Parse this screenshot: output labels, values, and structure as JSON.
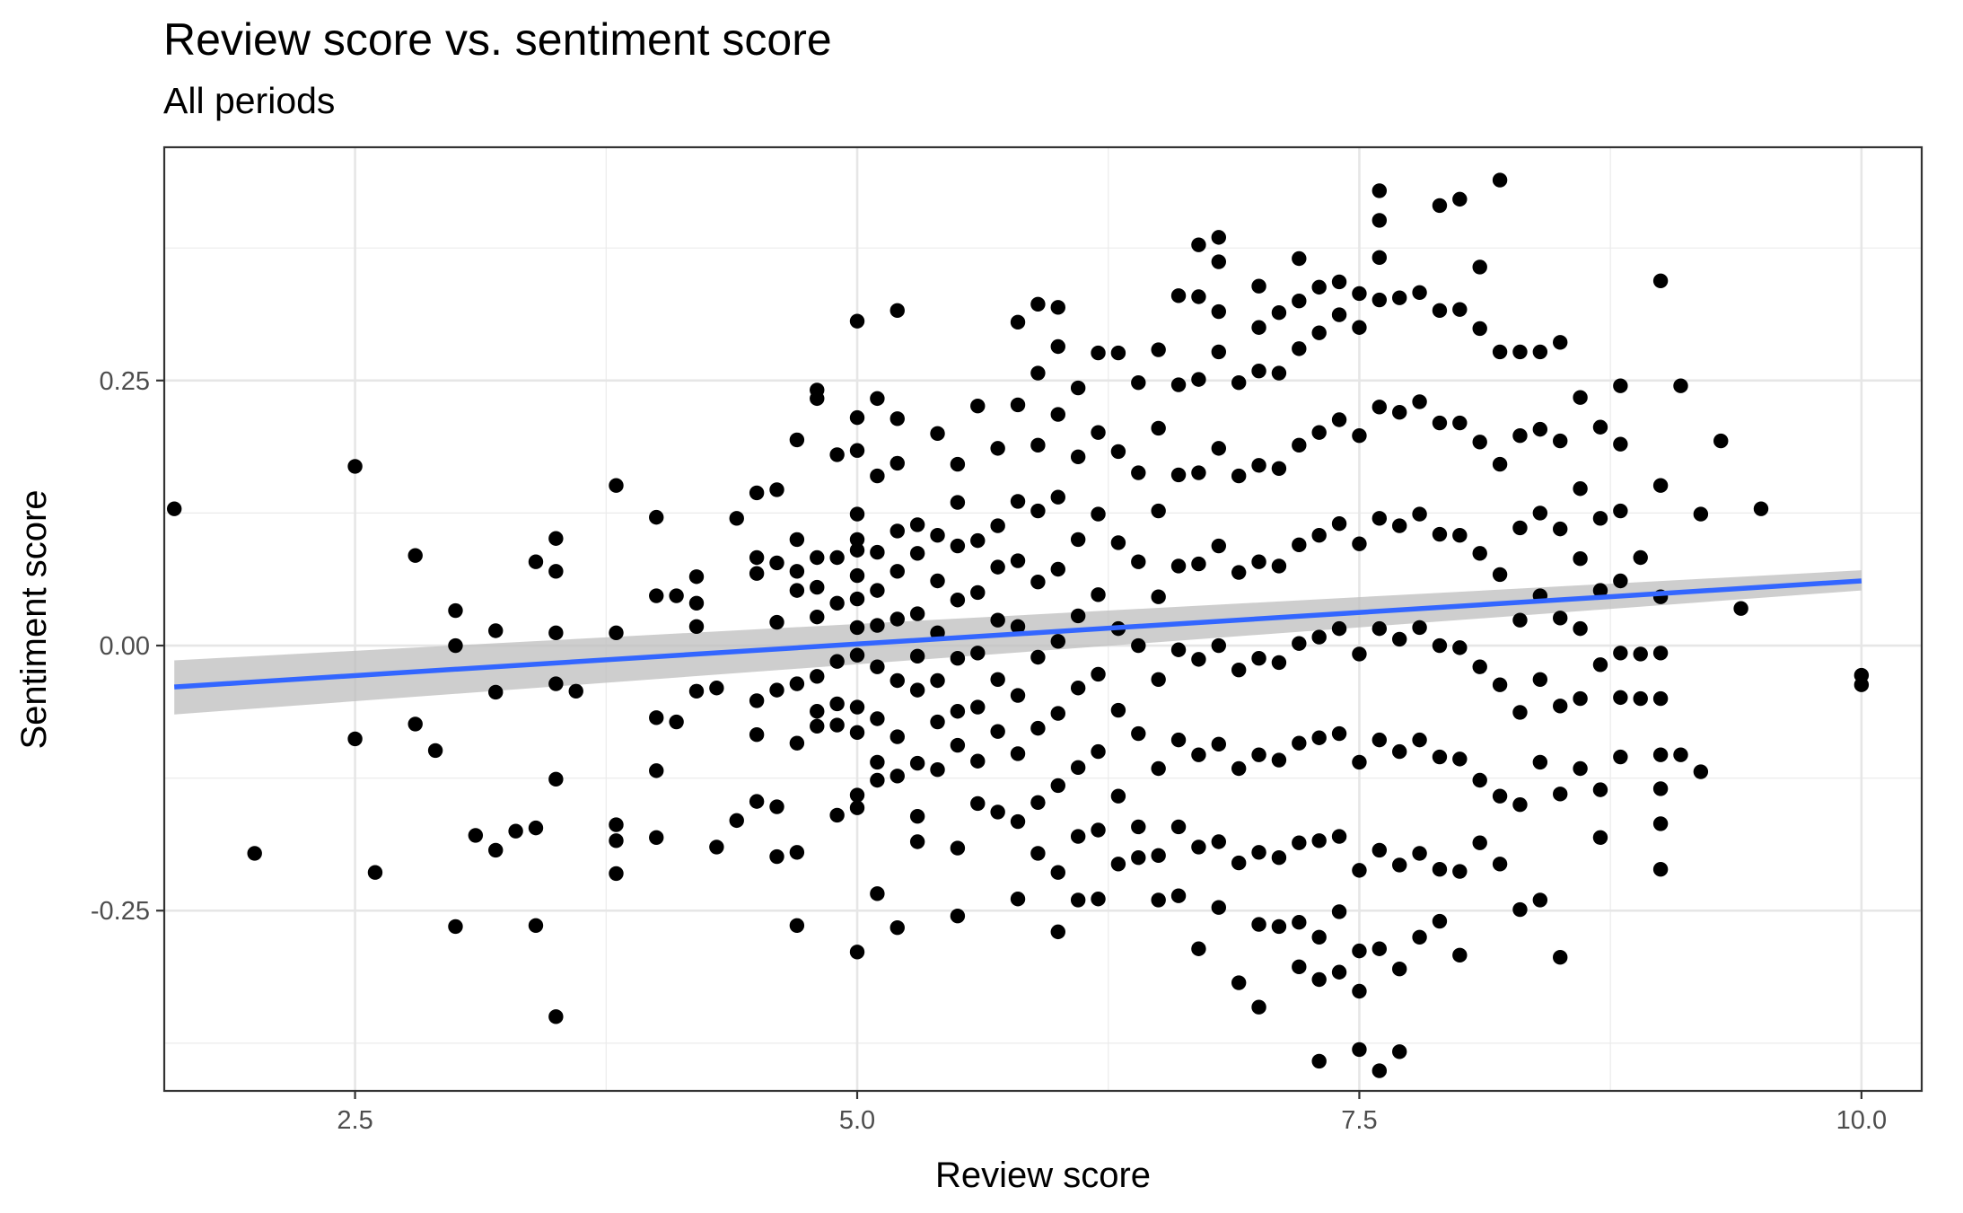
{
  "chart_data": {
    "type": "scatter",
    "title": "Review score vs. sentiment score",
    "subtitle": "All periods",
    "xlabel": "Review score",
    "ylabel": "Sentiment score",
    "xlim": [
      1.55,
      10.3
    ],
    "ylim": [
      -0.42,
      0.47
    ],
    "x_ticks": [
      2.5,
      5.0,
      7.5,
      10.0
    ],
    "x_tick_labels": [
      "2.5",
      "5.0",
      "7.5",
      "10.0"
    ],
    "y_ticks": [
      -0.25,
      0.0,
      0.25
    ],
    "y_tick_labels": [
      "-0.25",
      "0.00",
      "0.25"
    ],
    "grid": true,
    "legend": "none",
    "point_color": "#000000",
    "trend_line": {
      "method": "linear",
      "color": "#3366FF",
      "band_color": "#BEBEBE",
      "x": [
        1.6,
        10.0
      ],
      "y": [
        -0.039,
        0.061
      ],
      "ci_low": [
        -0.065,
        0.052
      ],
      "ci_high": [
        -0.014,
        0.071
      ]
    },
    "points": [
      [
        1.6,
        0.129
      ],
      [
        2.0,
        -0.196
      ],
      [
        2.5,
        0.169
      ],
      [
        2.5,
        -0.088
      ],
      [
        2.6,
        -0.214
      ],
      [
        2.8,
        0.085
      ],
      [
        2.8,
        -0.074
      ],
      [
        2.9,
        -0.099
      ],
      [
        3.0,
        0.033
      ],
      [
        3.0,
        0.0
      ],
      [
        3.0,
        -0.265
      ],
      [
        3.1,
        -0.179
      ],
      [
        3.2,
        0.014
      ],
      [
        3.2,
        -0.044
      ],
      [
        3.2,
        -0.193
      ],
      [
        3.3,
        -0.175
      ],
      [
        3.4,
        0.079
      ],
      [
        3.4,
        -0.172
      ],
      [
        3.4,
        -0.264
      ],
      [
        3.5,
        0.101
      ],
      [
        3.5,
        0.07
      ],
      [
        3.5,
        0.012
      ],
      [
        3.5,
        -0.036
      ],
      [
        3.5,
        -0.126
      ],
      [
        3.5,
        -0.35
      ],
      [
        3.6,
        -0.043
      ],
      [
        3.8,
        0.151
      ],
      [
        3.8,
        0.012
      ],
      [
        3.8,
        -0.169
      ],
      [
        3.8,
        -0.184
      ],
      [
        3.8,
        -0.215
      ],
      [
        4.0,
        0.121
      ],
      [
        4.0,
        0.047
      ],
      [
        4.0,
        -0.068
      ],
      [
        4.0,
        -0.118
      ],
      [
        4.0,
        -0.181
      ],
      [
        4.1,
        0.047
      ],
      [
        4.1,
        -0.072
      ],
      [
        4.2,
        0.065
      ],
      [
        4.2,
        0.04
      ],
      [
        4.2,
        0.018
      ],
      [
        4.2,
        -0.043
      ],
      [
        4.3,
        -0.04
      ],
      [
        4.3,
        -0.19
      ],
      [
        4.4,
        0.12
      ],
      [
        4.4,
        -0.165
      ],
      [
        4.5,
        0.144
      ],
      [
        4.5,
        0.083
      ],
      [
        4.5,
        0.068
      ],
      [
        4.5,
        -0.052
      ],
      [
        4.5,
        -0.084
      ],
      [
        4.5,
        -0.147
      ],
      [
        4.6,
        0.147
      ],
      [
        4.6,
        0.078
      ],
      [
        4.6,
        0.022
      ],
      [
        4.6,
        -0.042
      ],
      [
        4.6,
        -0.152
      ],
      [
        4.6,
        -0.199
      ],
      [
        4.7,
        0.194
      ],
      [
        4.7,
        0.1
      ],
      [
        4.7,
        0.07
      ],
      [
        4.7,
        0.052
      ],
      [
        4.7,
        -0.036
      ],
      [
        4.7,
        -0.092
      ],
      [
        4.7,
        -0.195
      ],
      [
        4.7,
        -0.264
      ],
      [
        4.8,
        0.241
      ],
      [
        4.8,
        0.233
      ],
      [
        4.8,
        0.083
      ],
      [
        4.8,
        0.055
      ],
      [
        4.8,
        0.027
      ],
      [
        4.8,
        -0.029
      ],
      [
        4.8,
        -0.062
      ],
      [
        4.8,
        -0.076
      ],
      [
        4.9,
        0.18
      ],
      [
        4.9,
        0.083
      ],
      [
        4.9,
        0.04
      ],
      [
        4.9,
        -0.015
      ],
      [
        4.9,
        -0.055
      ],
      [
        4.9,
        -0.075
      ],
      [
        4.9,
        -0.16
      ],
      [
        5.0,
        0.306
      ],
      [
        5.0,
        0.215
      ],
      [
        5.0,
        0.184
      ],
      [
        5.0,
        0.124
      ],
      [
        5.0,
        0.1
      ],
      [
        5.0,
        0.09
      ],
      [
        5.0,
        0.066
      ],
      [
        5.0,
        0.044
      ],
      [
        5.0,
        0.017
      ],
      [
        5.0,
        -0.009
      ],
      [
        5.0,
        -0.058
      ],
      [
        5.0,
        -0.082
      ],
      [
        5.0,
        -0.141
      ],
      [
        5.0,
        -0.153
      ],
      [
        5.0,
        -0.289
      ],
      [
        5.1,
        0.233
      ],
      [
        5.1,
        0.16
      ],
      [
        5.1,
        0.088
      ],
      [
        5.1,
        0.052
      ],
      [
        5.1,
        0.019
      ],
      [
        5.1,
        -0.02
      ],
      [
        5.1,
        -0.069
      ],
      [
        5.1,
        -0.11
      ],
      [
        5.1,
        -0.127
      ],
      [
        5.1,
        -0.234
      ],
      [
        5.2,
        0.316
      ],
      [
        5.2,
        0.214
      ],
      [
        5.2,
        0.172
      ],
      [
        5.2,
        0.108
      ],
      [
        5.2,
        0.07
      ],
      [
        5.2,
        0.025
      ],
      [
        5.2,
        -0.033
      ],
      [
        5.2,
        -0.086
      ],
      [
        5.2,
        -0.123
      ],
      [
        5.2,
        -0.266
      ],
      [
        5.3,
        0.114
      ],
      [
        5.3,
        0.087
      ],
      [
        5.3,
        0.03
      ],
      [
        5.3,
        -0.01
      ],
      [
        5.3,
        -0.042
      ],
      [
        5.3,
        -0.111
      ],
      [
        5.3,
        -0.161
      ],
      [
        5.3,
        -0.185
      ],
      [
        5.4,
        0.2
      ],
      [
        5.4,
        0.104
      ],
      [
        5.4,
        0.061
      ],
      [
        5.4,
        0.012
      ],
      [
        5.4,
        -0.033
      ],
      [
        5.4,
        -0.072
      ],
      [
        5.4,
        -0.117
      ],
      [
        5.5,
        0.171
      ],
      [
        5.5,
        0.135
      ],
      [
        5.5,
        0.094
      ],
      [
        5.5,
        0.043
      ],
      [
        5.5,
        -0.012
      ],
      [
        5.5,
        -0.062
      ],
      [
        5.5,
        -0.094
      ],
      [
        5.5,
        -0.191
      ],
      [
        5.5,
        -0.255
      ],
      [
        5.6,
        0.226
      ],
      [
        5.6,
        0.099
      ],
      [
        5.6,
        0.05
      ],
      [
        5.6,
        -0.007
      ],
      [
        5.6,
        -0.058
      ],
      [
        5.6,
        -0.109
      ],
      [
        5.6,
        -0.149
      ],
      [
        5.7,
        0.186
      ],
      [
        5.7,
        0.113
      ],
      [
        5.7,
        0.074
      ],
      [
        5.7,
        0.024
      ],
      [
        5.7,
        -0.032
      ],
      [
        5.7,
        -0.081
      ],
      [
        5.7,
        -0.157
      ],
      [
        5.8,
        0.305
      ],
      [
        5.8,
        0.227
      ],
      [
        5.8,
        0.136
      ],
      [
        5.8,
        0.08
      ],
      [
        5.8,
        0.018
      ],
      [
        5.8,
        -0.047
      ],
      [
        5.8,
        -0.102
      ],
      [
        5.8,
        -0.166
      ],
      [
        5.8,
        -0.239
      ],
      [
        5.9,
        0.322
      ],
      [
        5.9,
        0.257
      ],
      [
        5.9,
        0.189
      ],
      [
        5.9,
        0.127
      ],
      [
        5.9,
        0.06
      ],
      [
        5.9,
        -0.011
      ],
      [
        5.9,
        -0.078
      ],
      [
        5.9,
        -0.148
      ],
      [
        5.9,
        -0.196
      ],
      [
        6.0,
        0.319
      ],
      [
        6.0,
        0.282
      ],
      [
        6.0,
        0.218
      ],
      [
        6.0,
        0.14
      ],
      [
        6.0,
        0.072
      ],
      [
        6.0,
        0.004
      ],
      [
        6.0,
        -0.064
      ],
      [
        6.0,
        -0.132
      ],
      [
        6.0,
        -0.214
      ],
      [
        6.0,
        -0.27
      ],
      [
        6.1,
        0.243
      ],
      [
        6.1,
        0.178
      ],
      [
        6.1,
        0.1
      ],
      [
        6.1,
        0.028
      ],
      [
        6.1,
        -0.04
      ],
      [
        6.1,
        -0.115
      ],
      [
        6.1,
        -0.18
      ],
      [
        6.1,
        -0.24
      ],
      [
        6.2,
        0.276
      ],
      [
        6.2,
        0.201
      ],
      [
        6.2,
        0.124
      ],
      [
        6.2,
        0.048
      ],
      [
        6.2,
        -0.027
      ],
      [
        6.2,
        -0.1
      ],
      [
        6.2,
        -0.174
      ],
      [
        6.2,
        -0.239
      ],
      [
        6.3,
        0.276
      ],
      [
        6.3,
        0.183
      ],
      [
        6.3,
        0.097
      ],
      [
        6.3,
        0.016
      ],
      [
        6.3,
        -0.061
      ],
      [
        6.3,
        -0.142
      ],
      [
        6.3,
        -0.206
      ],
      [
        6.4,
        0.248
      ],
      [
        6.4,
        0.163
      ],
      [
        6.4,
        0.079
      ],
      [
        6.4,
        0.0
      ],
      [
        6.4,
        -0.083
      ],
      [
        6.4,
        -0.171
      ],
      [
        6.4,
        -0.2
      ],
      [
        6.5,
        0.279
      ],
      [
        6.5,
        0.205
      ],
      [
        6.5,
        0.127
      ],
      [
        6.5,
        0.046
      ],
      [
        6.5,
        -0.032
      ],
      [
        6.5,
        -0.116
      ],
      [
        6.5,
        -0.198
      ],
      [
        6.5,
        -0.24
      ],
      [
        6.6,
        0.33
      ],
      [
        6.6,
        0.246
      ],
      [
        6.6,
        0.161
      ],
      [
        6.6,
        0.075
      ],
      [
        6.6,
        -0.004
      ],
      [
        6.6,
        -0.089
      ],
      [
        6.6,
        -0.171
      ],
      [
        6.6,
        -0.236
      ],
      [
        6.7,
        0.378
      ],
      [
        6.7,
        0.329
      ],
      [
        6.7,
        0.251
      ],
      [
        6.7,
        0.163
      ],
      [
        6.7,
        0.077
      ],
      [
        6.7,
        -0.013
      ],
      [
        6.7,
        -0.103
      ],
      [
        6.7,
        -0.19
      ],
      [
        6.7,
        -0.286
      ],
      [
        6.8,
        0.385
      ],
      [
        6.8,
        0.362
      ],
      [
        6.8,
        0.315
      ],
      [
        6.8,
        0.277
      ],
      [
        6.8,
        0.186
      ],
      [
        6.8,
        0.094
      ],
      [
        6.8,
        0.0
      ],
      [
        6.8,
        -0.093
      ],
      [
        6.8,
        -0.185
      ],
      [
        6.8,
        -0.247
      ],
      [
        6.9,
        0.248
      ],
      [
        6.9,
        0.16
      ],
      [
        6.9,
        0.069
      ],
      [
        6.9,
        -0.023
      ],
      [
        6.9,
        -0.116
      ],
      [
        6.9,
        -0.205
      ],
      [
        6.9,
        -0.318
      ],
      [
        7.0,
        0.339
      ],
      [
        7.0,
        0.3
      ],
      [
        7.0,
        0.259
      ],
      [
        7.0,
        0.17
      ],
      [
        7.0,
        0.079
      ],
      [
        7.0,
        -0.012
      ],
      [
        7.0,
        -0.103
      ],
      [
        7.0,
        -0.195
      ],
      [
        7.0,
        -0.263
      ],
      [
        7.0,
        -0.341
      ],
      [
        7.1,
        0.314
      ],
      [
        7.1,
        0.257
      ],
      [
        7.1,
        0.167
      ],
      [
        7.1,
        0.075
      ],
      [
        7.1,
        -0.016
      ],
      [
        7.1,
        -0.108
      ],
      [
        7.1,
        -0.2
      ],
      [
        7.1,
        -0.265
      ],
      [
        7.2,
        0.365
      ],
      [
        7.2,
        0.325
      ],
      [
        7.2,
        0.28
      ],
      [
        7.2,
        0.189
      ],
      [
        7.2,
        0.095
      ],
      [
        7.2,
        0.002
      ],
      [
        7.2,
        -0.092
      ],
      [
        7.2,
        -0.186
      ],
      [
        7.2,
        -0.261
      ],
      [
        7.2,
        -0.303
      ],
      [
        7.3,
        0.338
      ],
      [
        7.3,
        0.295
      ],
      [
        7.3,
        0.201
      ],
      [
        7.3,
        0.104
      ],
      [
        7.3,
        0.008
      ],
      [
        7.3,
        -0.087
      ],
      [
        7.3,
        -0.184
      ],
      [
        7.3,
        -0.275
      ],
      [
        7.3,
        -0.315
      ],
      [
        7.3,
        -0.392
      ],
      [
        7.4,
        0.343
      ],
      [
        7.4,
        0.312
      ],
      [
        7.4,
        0.213
      ],
      [
        7.4,
        0.115
      ],
      [
        7.4,
        0.016
      ],
      [
        7.4,
        -0.083
      ],
      [
        7.4,
        -0.18
      ],
      [
        7.4,
        -0.251
      ],
      [
        7.4,
        -0.308
      ],
      [
        7.5,
        0.332
      ],
      [
        7.5,
        0.3
      ],
      [
        7.5,
        0.198
      ],
      [
        7.5,
        0.096
      ],
      [
        7.5,
        -0.008
      ],
      [
        7.5,
        -0.11
      ],
      [
        7.5,
        -0.212
      ],
      [
        7.5,
        -0.288
      ],
      [
        7.5,
        -0.326
      ],
      [
        7.5,
        -0.381
      ],
      [
        7.6,
        0.429
      ],
      [
        7.6,
        0.401
      ],
      [
        7.6,
        0.366
      ],
      [
        7.6,
        0.326
      ],
      [
        7.6,
        0.225
      ],
      [
        7.6,
        0.12
      ],
      [
        7.6,
        0.016
      ],
      [
        7.6,
        -0.089
      ],
      [
        7.6,
        -0.193
      ],
      [
        7.6,
        -0.286
      ],
      [
        7.6,
        -0.401
      ],
      [
        7.7,
        0.328
      ],
      [
        7.7,
        0.22
      ],
      [
        7.7,
        0.113
      ],
      [
        7.7,
        0.006
      ],
      [
        7.7,
        -0.1
      ],
      [
        7.7,
        -0.207
      ],
      [
        7.7,
        -0.305
      ],
      [
        7.7,
        -0.383
      ],
      [
        7.8,
        0.333
      ],
      [
        7.8,
        0.23
      ],
      [
        7.8,
        0.124
      ],
      [
        7.8,
        0.017
      ],
      [
        7.8,
        -0.089
      ],
      [
        7.8,
        -0.196
      ],
      [
        7.8,
        -0.275
      ],
      [
        7.9,
        0.415
      ],
      [
        7.9,
        0.316
      ],
      [
        7.9,
        0.21
      ],
      [
        7.9,
        0.105
      ],
      [
        7.9,
        0.0
      ],
      [
        7.9,
        -0.105
      ],
      [
        7.9,
        -0.211
      ],
      [
        7.9,
        -0.26
      ],
      [
        8.0,
        0.421
      ],
      [
        8.0,
        0.317
      ],
      [
        8.0,
        0.21
      ],
      [
        8.0,
        0.104
      ],
      [
        8.0,
        -0.002
      ],
      [
        8.0,
        -0.107
      ],
      [
        8.0,
        -0.213
      ],
      [
        8.0,
        -0.292
      ],
      [
        8.1,
        0.357
      ],
      [
        8.1,
        0.299
      ],
      [
        8.1,
        0.192
      ],
      [
        8.1,
        0.087
      ],
      [
        8.1,
        -0.02
      ],
      [
        8.1,
        -0.127
      ],
      [
        8.1,
        -0.186
      ],
      [
        8.2,
        0.439
      ],
      [
        8.2,
        0.277
      ],
      [
        8.2,
        0.171
      ],
      [
        8.2,
        0.067
      ],
      [
        8.2,
        -0.037
      ],
      [
        8.2,
        -0.142
      ],
      [
        8.2,
        -0.206
      ],
      [
        8.3,
        0.277
      ],
      [
        8.3,
        0.198
      ],
      [
        8.3,
        0.111
      ],
      [
        8.3,
        0.024
      ],
      [
        8.3,
        -0.063
      ],
      [
        8.3,
        -0.15
      ],
      [
        8.3,
        -0.249
      ],
      [
        8.4,
        0.277
      ],
      [
        8.4,
        0.204
      ],
      [
        8.4,
        0.125
      ],
      [
        8.4,
        0.047
      ],
      [
        8.4,
        -0.032
      ],
      [
        8.4,
        -0.11
      ],
      [
        8.4,
        -0.24
      ],
      [
        8.5,
        0.286
      ],
      [
        8.5,
        0.193
      ],
      [
        8.5,
        0.11
      ],
      [
        8.5,
        0.026
      ],
      [
        8.5,
        -0.057
      ],
      [
        8.5,
        -0.14
      ],
      [
        8.5,
        -0.294
      ],
      [
        8.6,
        0.234
      ],
      [
        8.6,
        0.148
      ],
      [
        8.6,
        0.082
      ],
      [
        8.6,
        0.016
      ],
      [
        8.6,
        -0.05
      ],
      [
        8.6,
        -0.116
      ],
      [
        8.7,
        0.206
      ],
      [
        8.7,
        0.12
      ],
      [
        8.7,
        0.052
      ],
      [
        8.7,
        -0.018
      ],
      [
        8.7,
        -0.136
      ],
      [
        8.7,
        -0.181
      ],
      [
        8.8,
        0.245
      ],
      [
        8.8,
        0.19
      ],
      [
        8.8,
        0.127
      ],
      [
        8.8,
        0.061
      ],
      [
        8.8,
        -0.007
      ],
      [
        8.8,
        -0.049
      ],
      [
        8.8,
        -0.105
      ],
      [
        8.9,
        0.083
      ],
      [
        8.9,
        -0.008
      ],
      [
        8.9,
        -0.05
      ],
      [
        9.0,
        0.344
      ],
      [
        9.0,
        0.151
      ],
      [
        9.0,
        0.046
      ],
      [
        9.0,
        -0.007
      ],
      [
        9.0,
        -0.05
      ],
      [
        9.0,
        -0.103
      ],
      [
        9.0,
        -0.135
      ],
      [
        9.0,
        -0.168
      ],
      [
        9.0,
        -0.211
      ],
      [
        9.1,
        0.245
      ],
      [
        9.1,
        -0.103
      ],
      [
        9.2,
        0.124
      ],
      [
        9.2,
        -0.119
      ],
      [
        9.3,
        0.193
      ],
      [
        9.4,
        0.035
      ],
      [
        9.5,
        0.129
      ],
      [
        10.0,
        -0.028
      ],
      [
        10.0,
        -0.037
      ]
    ]
  }
}
